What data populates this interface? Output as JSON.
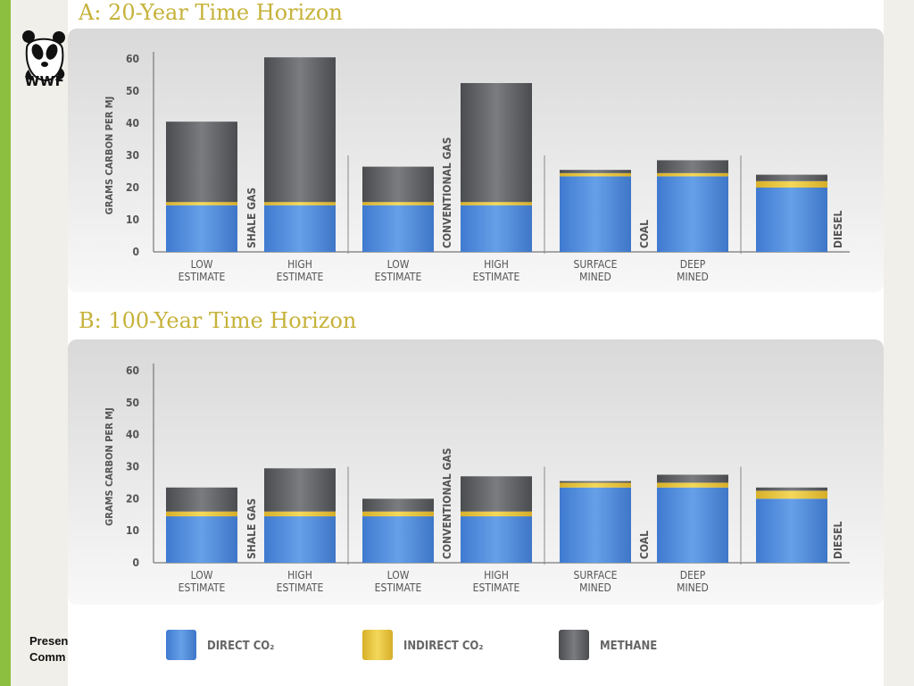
{
  "brand": {
    "logo_text": "WWF"
  },
  "footer": {
    "line1": "Presen",
    "line2": "Comm"
  },
  "chart_data": [
    {
      "type": "bar",
      "stacked": true,
      "title": "A: 20-Year Time Horizon",
      "ylabel": "GRAMS CARBON PER MJ",
      "ylim": [
        0,
        60
      ],
      "yticks": [
        0,
        10,
        20,
        30,
        40,
        50,
        60
      ],
      "groups": [
        {
          "label": "SHALE GAS",
          "bars": [
            {
              "label": [
                "LOW",
                "ESTIMATE"
              ],
              "direct": 14.5,
              "indirect": 1,
              "methane": 25
            },
            {
              "label": [
                "HIGH",
                "ESTIMATE"
              ],
              "direct": 14.5,
              "indirect": 1,
              "methane": 45
            }
          ]
        },
        {
          "label": "CONVENTIONAL GAS",
          "bars": [
            {
              "label": [
                "LOW",
                "ESTIMATE"
              ],
              "direct": 14.5,
              "indirect": 1,
              "methane": 11
            },
            {
              "label": [
                "HIGH",
                "ESTIMATE"
              ],
              "direct": 14.5,
              "indirect": 1,
              "methane": 37
            }
          ]
        },
        {
          "label": "COAL",
          "bars": [
            {
              "label": [
                "SURFACE",
                "MINED"
              ],
              "direct": 23.5,
              "indirect": 1,
              "methane": 1
            },
            {
              "label": [
                "DEEP",
                "MINED"
              ],
              "direct": 23.5,
              "indirect": 1,
              "methane": 4
            }
          ]
        },
        {
          "label": "DIESEL",
          "bars": [
            {
              "label": [
                "",
                ""
              ],
              "direct": 20,
              "indirect": 2,
              "methane": 2
            }
          ]
        }
      ]
    },
    {
      "type": "bar",
      "stacked": true,
      "title": "B: 100-Year Time Horizon",
      "ylabel": "GRAMS CARBON PER MJ",
      "ylim": [
        0,
        60
      ],
      "yticks": [
        0,
        10,
        20,
        30,
        40,
        50,
        60
      ],
      "groups": [
        {
          "label": "SHALE GAS",
          "bars": [
            {
              "label": [
                "LOW",
                "ESTIMATE"
              ],
              "direct": 14.5,
              "indirect": 1.5,
              "methane": 7.5
            },
            {
              "label": [
                "HIGH",
                "ESTIMATE"
              ],
              "direct": 14.5,
              "indirect": 1.5,
              "methane": 13.5
            }
          ]
        },
        {
          "label": "CONVENTIONAL GAS",
          "bars": [
            {
              "label": [
                "LOW",
                "ESTIMATE"
              ],
              "direct": 14.5,
              "indirect": 1.5,
              "methane": 4
            },
            {
              "label": [
                "HIGH",
                "ESTIMATE"
              ],
              "direct": 14.5,
              "indirect": 1.5,
              "methane": 11
            }
          ]
        },
        {
          "label": "COAL",
          "bars": [
            {
              "label": [
                "SURFACE",
                "MINED"
              ],
              "direct": 23.5,
              "indirect": 1.5,
              "methane": 0.5
            },
            {
              "label": [
                "DEEP",
                "MINED"
              ],
              "direct": 23.5,
              "indirect": 1.5,
              "methane": 2.5
            }
          ]
        },
        {
          "label": "DIESEL",
          "bars": [
            {
              "label": [
                "",
                ""
              ],
              "direct": 20,
              "indirect": 2.5,
              "methane": 1
            }
          ]
        }
      ]
    }
  ],
  "legend": [
    {
      "key": "direct",
      "label": "DIRECT CO₂",
      "color": "#4e86d4"
    },
    {
      "key": "indirect",
      "label": "INDIRECT CO₂",
      "color": "#e6c23a"
    },
    {
      "key": "methane",
      "label": "METHANE",
      "color": "#5a5c5f"
    }
  ],
  "colors": {
    "title": "#c6b23a",
    "axis_text": "#555555",
    "panel_bg_top": "#d6d6d6",
    "panel_bg_bottom": "#f7f7f7"
  }
}
